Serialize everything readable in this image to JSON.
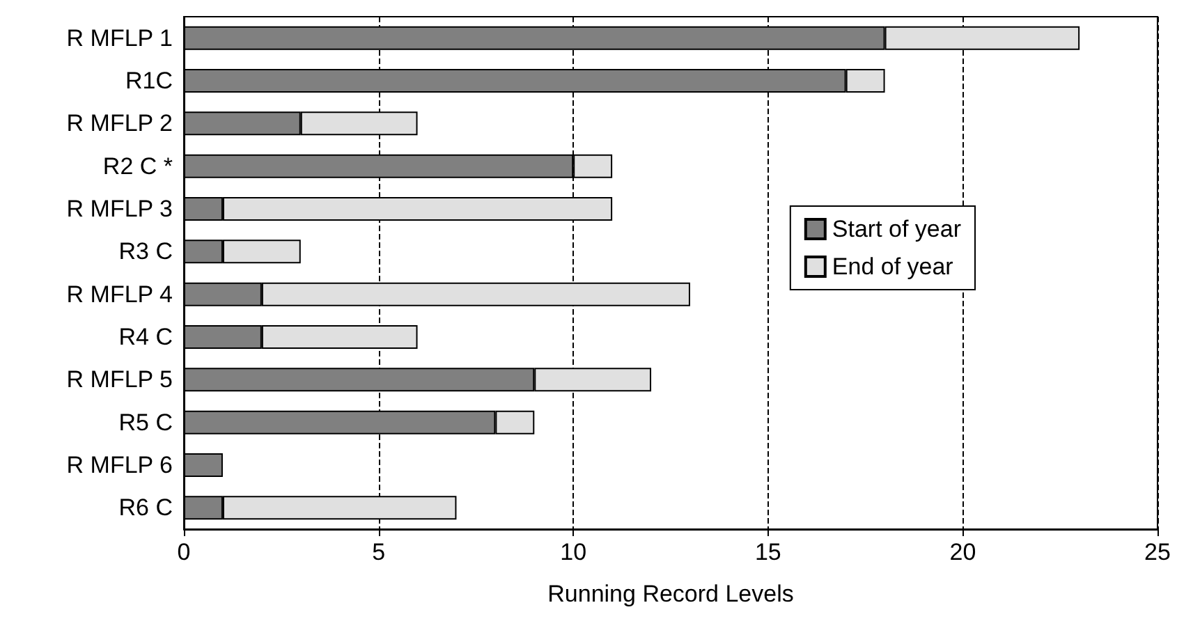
{
  "chart_data": {
    "type": "bar",
    "orientation": "horizontal",
    "stacked": true,
    "xlabel": "Running Record Levels",
    "categories": [
      "R MFLP 1",
      "R1C",
      "R MFLP 2",
      "R2 C *",
      "R MFLP 3",
      "R3 C",
      "R MFLP 4",
      "R4 C",
      "R MFLP 5",
      "R5 C",
      "R MFLP 6",
      "R6 C"
    ],
    "series": [
      {
        "name": "Start of year",
        "color": "#808080",
        "values": [
          18,
          17,
          3,
          10,
          1,
          1,
          2,
          2,
          9,
          8,
          1,
          1
        ]
      },
      {
        "name": "End of year",
        "color": "#e0e0e0",
        "values": [
          5,
          1,
          3,
          1,
          10,
          2,
          11,
          4,
          3,
          1,
          null,
          6
        ]
      }
    ],
    "xlim": [
      0,
      25
    ],
    "xticks": [
      0,
      5,
      10,
      15,
      20,
      25
    ],
    "grid": "x",
    "legend": "right"
  }
}
